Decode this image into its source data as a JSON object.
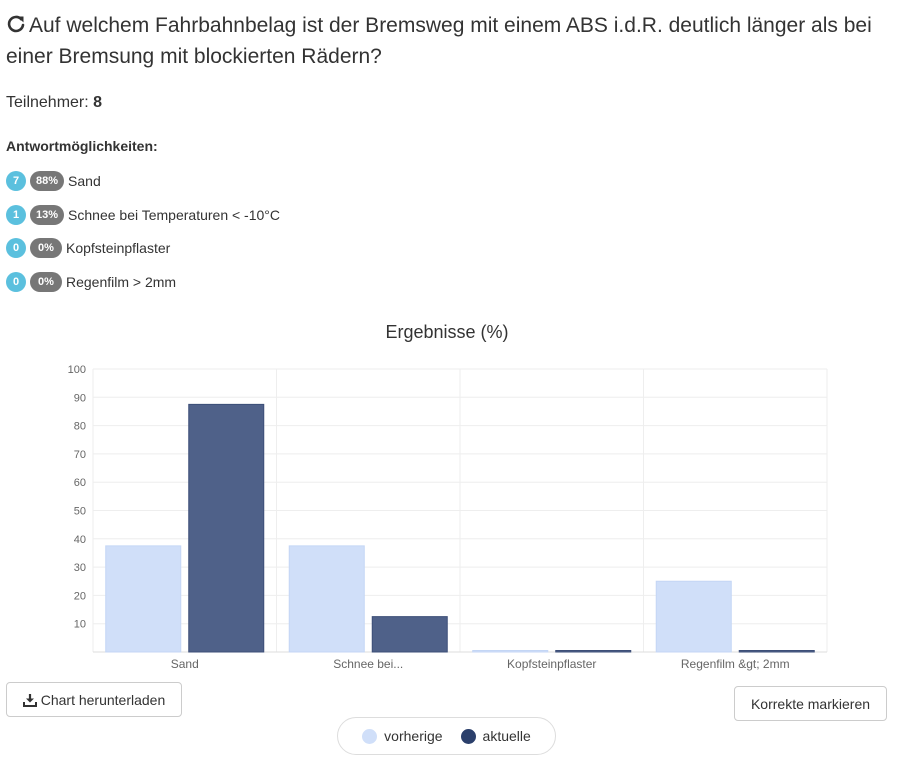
{
  "question": {
    "icon": "reload-icon",
    "text": "Auf welchem Fahrbahnbelag ist der Bremsweg mit einem ABS i.d.R. deutlich länger als bei einer Bremsung mit blockierten Rädern?"
  },
  "participants": {
    "label": "Teilnehmer:",
    "value": "8"
  },
  "answers_title": "Antwortmöglichkeiten:",
  "answers": [
    {
      "count": "7",
      "percent": "88%",
      "text": "Sand"
    },
    {
      "count": "1",
      "percent": "13%",
      "text": "Schnee bei Temperaturen < -10°C"
    },
    {
      "count": "0",
      "percent": "0%",
      "text": "Kopfsteinpflaster"
    },
    {
      "count": "0",
      "percent": "0%",
      "text": "Regenfilm > 2mm"
    }
  ],
  "buttons": {
    "download_label": "Chart herunterladen",
    "download_icon": "download-icon",
    "mark_correct_label": "Korrekte markieren"
  },
  "colors": {
    "badge_count": "#5bc0de",
    "badge_percent": "#777777",
    "previous": "#d0dff9",
    "current": "#4f6189",
    "current_border": "#3d4f78"
  },
  "chart_data": {
    "type": "bar",
    "title": "Ergebnisse (%)",
    "categories": [
      "Sand",
      "Schnee bei...",
      "Kopfsteinpflaster",
      "Regenfilm &gt; 2mm"
    ],
    "series": [
      {
        "name": "vorherige",
        "values": [
          37.5,
          37.5,
          0,
          25
        ]
      },
      {
        "name": "aktuelle",
        "values": [
          87.5,
          12.5,
          0,
          0
        ]
      }
    ],
    "yticks": [
      10,
      20,
      30,
      40,
      50,
      60,
      70,
      80,
      90,
      100
    ],
    "ylim": [
      0,
      100
    ],
    "grid": true,
    "legend_position": "bottom"
  }
}
